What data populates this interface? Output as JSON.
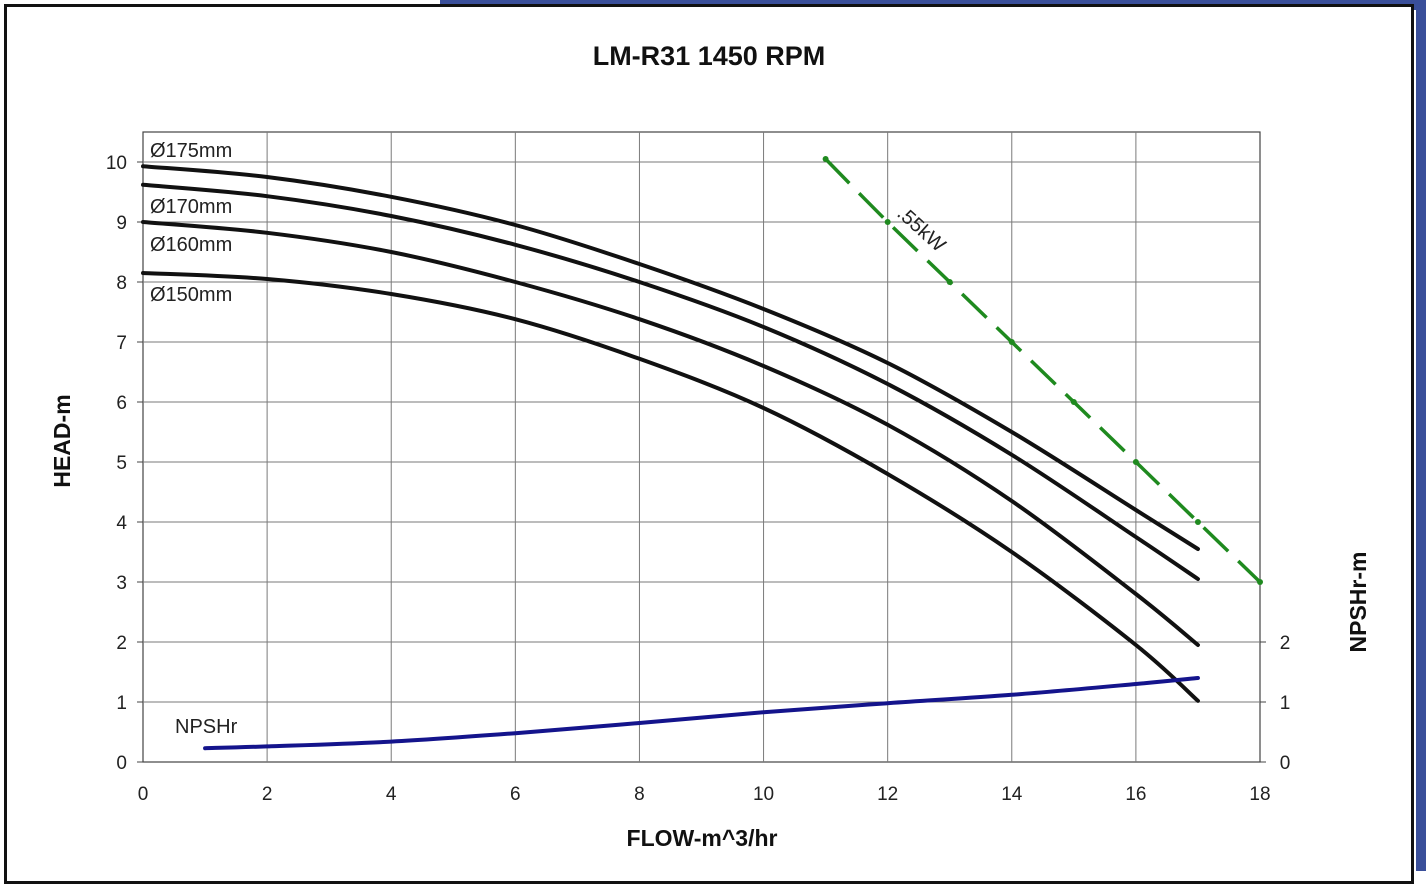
{
  "chart_data": {
    "type": "line",
    "title": "LM-R31 1450 RPM",
    "xlabel": "FLOW-m^3/hr",
    "ylabel": "HEAD-m",
    "y2label": "NPSHr-m",
    "xlim": [
      0,
      18
    ],
    "ylim": [
      0,
      10
    ],
    "x_ticks": [
      "0",
      "2",
      "4",
      "6",
      "8",
      "10",
      "12",
      "14",
      "16",
      "18"
    ],
    "y_ticks": [
      "0",
      "1",
      "2",
      "3",
      "4",
      "5",
      "6",
      "7",
      "8",
      "9",
      "10"
    ],
    "y2_ticks": [
      "0",
      "1",
      "2"
    ],
    "grid": true,
    "series": [
      {
        "name": "Ø175mm",
        "color": "#111111",
        "x": [
          0,
          2,
          4,
          6,
          8,
          10,
          12,
          14,
          16,
          17
        ],
        "y": [
          9.93,
          9.75,
          9.42,
          8.95,
          8.3,
          7.55,
          6.65,
          5.5,
          4.2,
          3.55
        ]
      },
      {
        "name": "Ø170mm",
        "color": "#111111",
        "x": [
          0,
          2,
          4,
          6,
          8,
          10,
          12,
          14,
          16,
          17
        ],
        "y": [
          9.62,
          9.43,
          9.1,
          8.62,
          8.0,
          7.25,
          6.3,
          5.12,
          3.75,
          3.05
        ]
      },
      {
        "name": "Ø160mm",
        "color": "#111111",
        "x": [
          0,
          2,
          4,
          6,
          8,
          10,
          12,
          14,
          16,
          17
        ],
        "y": [
          9.0,
          8.82,
          8.5,
          8.0,
          7.38,
          6.6,
          5.62,
          4.35,
          2.8,
          1.95
        ]
      },
      {
        "name": "Ø150mm",
        "color": "#111111",
        "x": [
          0,
          2,
          4,
          6,
          8,
          10,
          12,
          14,
          16,
          17
        ],
        "y": [
          8.15,
          8.05,
          7.8,
          7.38,
          6.72,
          5.9,
          4.8,
          3.5,
          1.95,
          1.02
        ]
      },
      {
        "name": ".55kW",
        "color": "#1f8a1f",
        "dashed": true,
        "x": [
          11,
          12,
          13,
          14,
          15,
          16,
          17,
          18
        ],
        "y": [
          10.05,
          9.0,
          8.0,
          7.0,
          6.0,
          5.0,
          4.0,
          3.0
        ]
      },
      {
        "name": "NPSHr",
        "color": "#14148c",
        "axis": "right",
        "x": [
          1,
          2,
          4,
          6,
          8,
          10,
          12,
          14,
          16,
          17
        ],
        "y": [
          0.23,
          0.26,
          0.34,
          0.48,
          0.65,
          0.83,
          0.98,
          1.12,
          1.3,
          1.4
        ]
      }
    ]
  }
}
